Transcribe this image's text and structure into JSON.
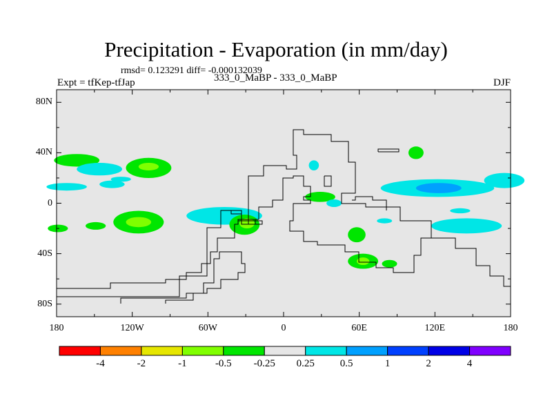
{
  "chart_data": {
    "type": "heatmap",
    "title": "Precipitation - Evaporation (in mm/day)",
    "stats_text": "rmsd= 0.123291 diff= -0.000132039",
    "left_label": "Expt = tfKep-tfJap",
    "center_label": "333_0_MaBP - 333_0_MaBP",
    "right_label": "DJF",
    "x_ticks": [
      {
        "value": -180,
        "label": "180"
      },
      {
        "value": -120,
        "label": "120W"
      },
      {
        "value": -60,
        "label": "60W"
      },
      {
        "value": 0,
        "label": "0"
      },
      {
        "value": 60,
        "label": "60E"
      },
      {
        "value": 120,
        "label": "120E"
      },
      {
        "value": 180,
        "label": "180"
      }
    ],
    "y_ticks": [
      {
        "value": 80,
        "label": "80N"
      },
      {
        "value": 40,
        "label": "40N"
      },
      {
        "value": 0,
        "label": "0"
      },
      {
        "value": -40,
        "label": "40S"
      },
      {
        "value": -80,
        "label": "80S"
      }
    ],
    "xlim": [
      -180,
      180
    ],
    "ylim": [
      -90,
      90
    ],
    "background_color": "#e6e6e6",
    "colorbar": {
      "labels": [
        "-4",
        "-2",
        "-1",
        "-0.5",
        "-0.25",
        "0.25",
        "0.5",
        "1",
        "2",
        "4"
      ],
      "colors": [
        "#ff0000",
        "#ff8000",
        "#e6e600",
        "#80ff00",
        "#00e600",
        "#e6e6e6",
        "#00e6e6",
        "#00a0ff",
        "#0040ff",
        "#0000e6",
        "#8000ff"
      ]
    },
    "blobs": [
      {
        "lon": -164,
        "lat": 34,
        "w": 18,
        "h": 5,
        "color": "#00e600"
      },
      {
        "lon": -172,
        "lat": 13,
        "w": 16,
        "h": 3,
        "color": "#00e6e6"
      },
      {
        "lon": -146,
        "lat": 27,
        "w": 18,
        "h": 5,
        "color": "#00e6e6"
      },
      {
        "lon": -136,
        "lat": 15,
        "w": 10,
        "h": 3,
        "color": "#00e6e6"
      },
      {
        "lon": -129,
        "lat": 19,
        "w": 8,
        "h": 2,
        "color": "#00e6e6"
      },
      {
        "lon": -107,
        "lat": 28,
        "w": 18,
        "h": 8,
        "color": "#00e600"
      },
      {
        "lon": -107,
        "lat": 29,
        "w": 8,
        "h": 3,
        "color": "#80ff00"
      },
      {
        "lon": -115,
        "lat": -15,
        "w": 20,
        "h": 9,
        "color": "#00e600"
      },
      {
        "lon": -115,
        "lat": -15,
        "w": 10,
        "h": 4,
        "color": "#80ff00"
      },
      {
        "lon": -179,
        "lat": -20,
        "w": 8,
        "h": 3,
        "color": "#00e600"
      },
      {
        "lon": -149,
        "lat": -18,
        "w": 8,
        "h": 3,
        "color": "#00e600"
      },
      {
        "lon": -47,
        "lat": -10,
        "w": 30,
        "h": 7,
        "color": "#00e6e6"
      },
      {
        "lon": -31,
        "lat": -17,
        "w": 12,
        "h": 8,
        "color": "#00e600"
      },
      {
        "lon": -29,
        "lat": -16,
        "w": 6,
        "h": 4,
        "color": "#80ff00"
      },
      {
        "lon": 29,
        "lat": 5,
        "w": 12,
        "h": 4,
        "color": "#00e600"
      },
      {
        "lon": 24,
        "lat": 30,
        "w": 4,
        "h": 4,
        "color": "#00e6e6"
      },
      {
        "lon": 40,
        "lat": 0,
        "w": 6,
        "h": 3,
        "color": "#00e6e6"
      },
      {
        "lon": 58,
        "lat": -25,
        "w": 7,
        "h": 6,
        "color": "#00e600"
      },
      {
        "lon": 63,
        "lat": -46,
        "w": 12,
        "h": 6,
        "color": "#00e600"
      },
      {
        "lon": 63,
        "lat": -46,
        "w": 5,
        "h": 3,
        "color": "#80ff00"
      },
      {
        "lon": 84,
        "lat": -48,
        "w": 6,
        "h": 3,
        "color": "#00e600"
      },
      {
        "lon": 105,
        "lat": 40,
        "w": 6,
        "h": 5,
        "color": "#00e600"
      },
      {
        "lon": 122,
        "lat": 12,
        "w": 45,
        "h": 7,
        "color": "#00e6e6"
      },
      {
        "lon": 123,
        "lat": 12,
        "w": 18,
        "h": 4,
        "color": "#00a0ff"
      },
      {
        "lon": 175,
        "lat": 18,
        "w": 16,
        "h": 6,
        "color": "#00e6e6"
      },
      {
        "lon": 145,
        "lat": -18,
        "w": 28,
        "h": 6,
        "color": "#00e6e6"
      },
      {
        "lon": 140,
        "lat": -6,
        "w": 8,
        "h": 2,
        "color": "#00e6e6"
      },
      {
        "lon": 80,
        "lat": -14,
        "w": 6,
        "h": 2,
        "color": "#00e6e6"
      }
    ]
  }
}
